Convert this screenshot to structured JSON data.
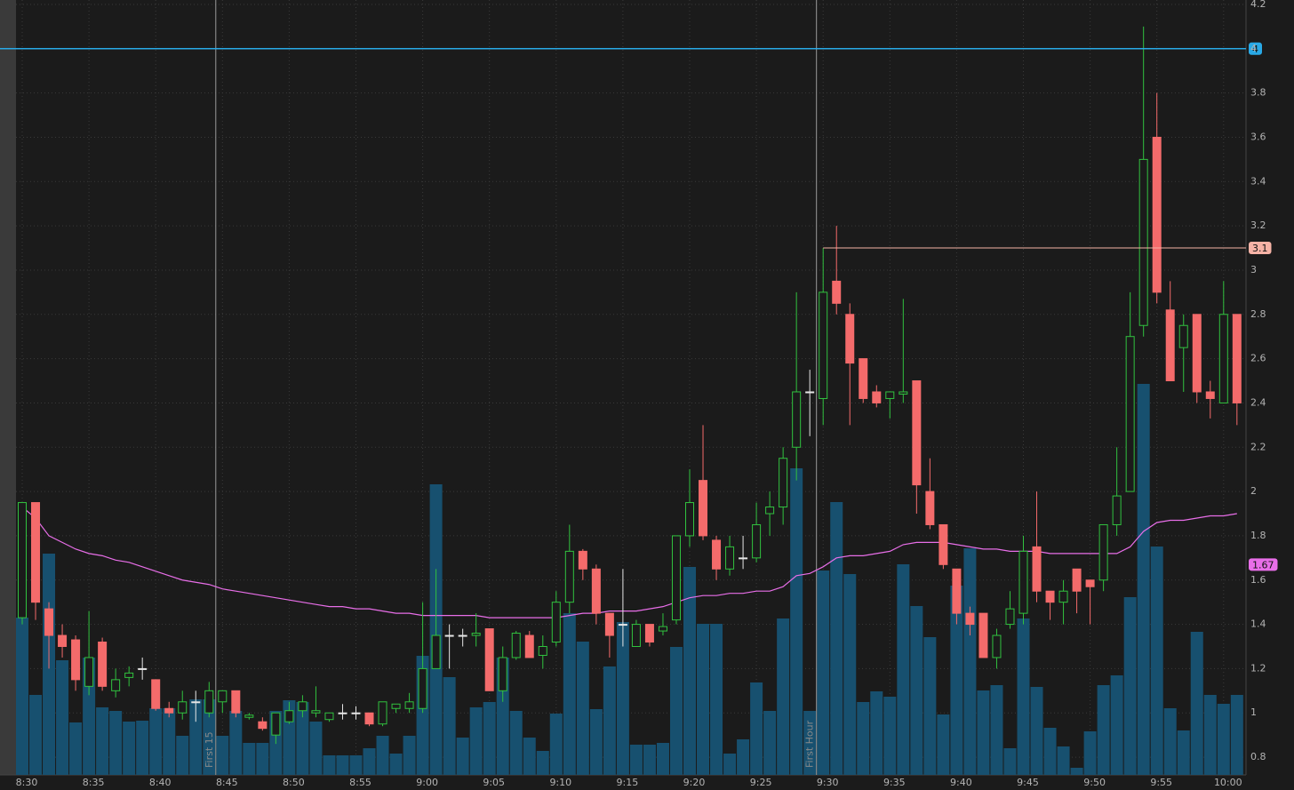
{
  "chart_data": {
    "type": "candlestick",
    "categories": [
      "8:30",
      null,
      null,
      null,
      null,
      "8:35",
      null,
      null,
      null,
      null,
      "8:40",
      null,
      null,
      null,
      null,
      "8:45",
      null,
      null,
      null,
      null,
      "8:50",
      null,
      null,
      null,
      null,
      "8:55",
      null,
      null,
      null,
      null,
      "9:00",
      null,
      null,
      null,
      null,
      "9:05",
      null,
      null,
      null,
      null,
      "9:10",
      null,
      null,
      null,
      null,
      "9:15",
      null,
      null,
      null,
      null,
      "9:20",
      null,
      null,
      null,
      null,
      "9:25",
      null,
      null,
      null,
      null,
      "9:30",
      null,
      null,
      null,
      null,
      "9:35",
      null,
      null,
      null,
      null,
      "9:40",
      null,
      null,
      null,
      null,
      "9:45",
      null,
      null,
      null,
      null,
      "9:50",
      null,
      null,
      null,
      null,
      "9:55",
      null,
      null,
      null,
      null,
      "10:00",
      null
    ],
    "open": [
      1.43,
      1.95,
      1.47,
      1.35,
      1.33,
      1.12,
      1.32,
      1.1,
      1.16,
      1.2,
      1.15,
      1.02,
      1.0,
      1.05,
      1.0,
      1.05,
      1.1,
      0.98,
      0.96,
      0.9,
      0.96,
      1.01,
      1.0,
      0.97,
      1.0,
      1.0,
      1.0,
      0.95,
      1.02,
      1.02,
      1.02,
      1.2,
      1.35,
      1.35,
      1.35,
      1.38,
      1.1,
      1.25,
      1.35,
      1.26,
      1.32,
      1.5,
      1.73,
      1.65,
      1.45,
      1.4,
      1.3,
      1.4,
      1.37,
      1.42,
      1.8,
      2.05,
      1.78,
      1.65,
      1.7,
      1.7,
      1.9,
      1.93,
      2.2,
      2.45,
      2.42,
      2.95,
      2.8,
      2.6,
      2.45,
      2.42,
      2.44,
      2.5,
      2.0,
      1.85,
      1.65,
      1.45,
      1.45,
      1.25,
      1.4,
      1.45,
      1.75,
      1.55,
      1.5,
      1.65,
      1.6,
      1.6,
      1.85,
      2.0,
      2.75,
      3.6,
      2.82,
      2.65,
      2.8,
      2.45,
      2.4,
      2.8
    ],
    "high": [
      1.95,
      1.95,
      1.5,
      1.4,
      1.35,
      1.46,
      1.34,
      1.2,
      1.21,
      1.25,
      1.15,
      1.05,
      1.1,
      1.1,
      1.14,
      1.1,
      1.1,
      1.0,
      0.98,
      1.0,
      1.05,
      1.08,
      1.12,
      1.0,
      1.04,
      1.03,
      1.0,
      1.05,
      1.04,
      1.09,
      1.5,
      1.65,
      1.4,
      1.38,
      1.45,
      1.38,
      1.3,
      1.37,
      1.37,
      1.35,
      1.55,
      1.85,
      1.74,
      1.67,
      1.45,
      1.65,
      1.42,
      1.4,
      1.45,
      1.8,
      2.1,
      2.3,
      1.8,
      1.8,
      1.8,
      1.95,
      2.0,
      2.2,
      2.9,
      2.55,
      3.1,
      3.2,
      2.85,
      2.6,
      2.48,
      2.45,
      2.87,
      2.5,
      2.15,
      1.85,
      1.65,
      1.48,
      1.45,
      1.38,
      1.55,
      1.8,
      2.0,
      1.55,
      1.6,
      1.65,
      1.6,
      1.85,
      2.2,
      2.9,
      4.1,
      3.8,
      2.95,
      2.8,
      2.8,
      2.5,
      2.95,
      2.8
    ],
    "low": [
      1.4,
      1.42,
      1.2,
      1.25,
      1.1,
      1.08,
      1.1,
      1.07,
      1.12,
      1.15,
      1.01,
      0.98,
      0.97,
      0.96,
      0.98,
      1.0,
      0.98,
      0.97,
      0.92,
      0.86,
      0.95,
      0.98,
      0.98,
      0.96,
      0.97,
      0.97,
      0.94,
      0.94,
      1.0,
      1.0,
      1.0,
      1.2,
      1.2,
      1.3,
      1.3,
      1.1,
      1.05,
      1.24,
      1.25,
      1.2,
      1.3,
      1.45,
      1.6,
      1.4,
      1.25,
      1.3,
      1.3,
      1.3,
      1.35,
      1.4,
      1.75,
      1.78,
      1.6,
      1.62,
      1.65,
      1.68,
      1.8,
      1.85,
      2.05,
      2.25,
      2.3,
      2.8,
      2.3,
      2.4,
      2.38,
      2.33,
      2.4,
      1.9,
      1.83,
      1.65,
      1.4,
      1.35,
      1.25,
      1.2,
      1.38,
      1.4,
      1.5,
      1.42,
      1.4,
      1.45,
      1.4,
      1.55,
      1.8,
      2.0,
      2.7,
      2.85,
      2.5,
      2.45,
      2.4,
      2.33,
      2.4,
      2.3
    ],
    "close": [
      1.95,
      1.5,
      1.35,
      1.3,
      1.15,
      1.25,
      1.12,
      1.15,
      1.18,
      1.2,
      1.02,
      1.0,
      1.05,
      1.05,
      1.1,
      1.1,
      1.0,
      0.99,
      0.93,
      1.0,
      1.01,
      1.05,
      1.01,
      1.0,
      1.0,
      1.0,
      0.95,
      1.05,
      1.04,
      1.05,
      1.2,
      1.35,
      1.35,
      1.35,
      1.36,
      1.1,
      1.25,
      1.36,
      1.25,
      1.3,
      1.5,
      1.73,
      1.65,
      1.45,
      1.35,
      1.4,
      1.4,
      1.32,
      1.39,
      1.8,
      1.95,
      1.8,
      1.65,
      1.75,
      1.7,
      1.85,
      1.93,
      2.15,
      2.45,
      2.45,
      2.9,
      2.85,
      2.58,
      2.42,
      2.4,
      2.45,
      2.45,
      2.03,
      1.85,
      1.67,
      1.45,
      1.4,
      1.25,
      1.35,
      1.47,
      1.73,
      1.55,
      1.5,
      1.55,
      1.55,
      1.57,
      1.85,
      1.98,
      2.7,
      3.5,
      2.9,
      2.5,
      2.75,
      2.45,
      2.42,
      2.8,
      2.4
    ],
    "up_color": "#31c23f",
    "down_color": "#f46b6b",
    "unchanged_color": "#e6e6e6",
    "volume": {
      "color": "#17506f",
      "values": [
        177,
        90,
        249,
        129,
        59,
        132,
        76,
        72,
        60,
        61,
        75,
        75,
        44,
        85,
        85,
        44,
        72,
        36,
        36,
        72,
        84,
        82,
        60,
        22,
        22,
        22,
        30,
        44,
        24,
        44,
        134,
        327,
        110,
        42,
        76,
        82,
        132,
        72,
        42,
        27,
        69,
        182,
        150,
        74,
        122,
        172,
        34,
        34,
        36,
        144,
        234,
        170,
        170,
        24,
        40,
        104,
        72,
        176,
        345,
        72,
        230,
        307,
        226,
        82,
        94,
        88,
        237,
        190,
        155,
        68,
        213,
        255,
        95,
        101,
        30,
        176,
        99,
        53,
        32,
        8,
        49,
        101,
        112,
        200,
        440,
        257,
        75,
        50,
        161,
        90,
        80,
        90
      ]
    },
    "moving_average": {
      "color": "#e86ee8",
      "values": [
        1.93,
        1.88,
        1.8,
        1.77,
        1.74,
        1.72,
        1.71,
        1.69,
        1.68,
        1.66,
        1.64,
        1.62,
        1.6,
        1.59,
        1.58,
        1.56,
        1.55,
        1.54,
        1.53,
        1.52,
        1.51,
        1.5,
        1.49,
        1.48,
        1.48,
        1.47,
        1.47,
        1.46,
        1.45,
        1.45,
        1.44,
        1.44,
        1.44,
        1.44,
        1.44,
        1.43,
        1.43,
        1.43,
        1.43,
        1.43,
        1.43,
        1.44,
        1.45,
        1.45,
        1.46,
        1.46,
        1.46,
        1.47,
        1.48,
        1.5,
        1.52,
        1.53,
        1.53,
        1.54,
        1.54,
        1.55,
        1.55,
        1.57,
        1.62,
        1.63,
        1.66,
        1.7,
        1.71,
        1.71,
        1.72,
        1.73,
        1.76,
        1.77,
        1.77,
        1.77,
        1.76,
        1.75,
        1.74,
        1.74,
        1.73,
        1.73,
        1.73,
        1.72,
        1.72,
        1.72,
        1.72,
        1.72,
        1.72,
        1.75,
        1.82,
        1.86,
        1.87,
        1.87,
        1.88,
        1.89,
        1.89,
        1.9
      ]
    },
    "price_markers": [
      {
        "value": 4,
        "color": "#29a9e6",
        "line": true,
        "from": "8:30"
      },
      {
        "value": 3.1,
        "color": "#f6b3a6",
        "line": true,
        "from": "9:30"
      },
      {
        "value": 1.67,
        "color": "#e86ee8",
        "line": false
      }
    ],
    "vertical_markers": [
      {
        "label": "First 15",
        "at": "8:45"
      },
      {
        "label": "First Hour",
        "at": "9:30"
      }
    ],
    "ylim": [
      0.72,
      4.22
    ],
    "yticks": [
      0.8,
      1,
      1.2,
      1.4,
      1.6,
      1.8,
      2,
      2.2,
      2.4,
      2.6,
      2.8,
      3,
      3.2,
      3.4,
      3.6,
      3.8,
      4,
      4.2
    ],
    "grid": true
  }
}
